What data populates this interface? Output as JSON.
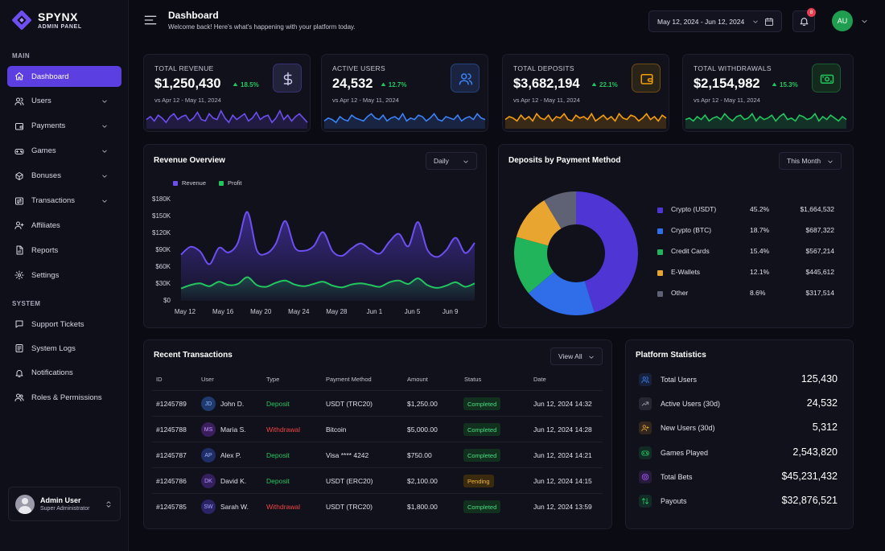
{
  "brand": {
    "name": "SPYNX",
    "sub": "ADMIN PANEL"
  },
  "sidebar": {
    "main_label": "MAIN",
    "system_label": "SYSTEM",
    "main_items": [
      {
        "label": "Dashboard",
        "icon": "home-icon",
        "active": true,
        "chevron": false
      },
      {
        "label": "Users",
        "icon": "users-icon",
        "chevron": true
      },
      {
        "label": "Payments",
        "icon": "wallet-icon",
        "chevron": true
      },
      {
        "label": "Games",
        "icon": "gamepad-icon",
        "chevron": true
      },
      {
        "label": "Bonuses",
        "icon": "gift-icon",
        "chevron": true
      },
      {
        "label": "Transactions",
        "icon": "exchange-icon",
        "chevron": true
      },
      {
        "label": "Affiliates",
        "icon": "user-plus-icon",
        "chevron": false
      },
      {
        "label": "Reports",
        "icon": "file-chart-icon",
        "chevron": false
      },
      {
        "label": "Settings",
        "icon": "gear-icon",
        "chevron": false
      }
    ],
    "system_items": [
      {
        "label": "Support Tickets",
        "icon": "chat-icon"
      },
      {
        "label": "System Logs",
        "icon": "log-icon"
      },
      {
        "label": "Notifications",
        "icon": "bell-icon"
      },
      {
        "label": "Roles & Permissions",
        "icon": "shield-users-icon"
      }
    ],
    "user": {
      "name": "Admin User",
      "role": "Super Administrator"
    }
  },
  "header": {
    "title": "Dashboard",
    "subtitle": "Welcome back! Here's what's happening with your platform today.",
    "date_range": "May 12, 2024 - Jun 12, 2024",
    "notif_count": "8",
    "avatar_initials": "AU"
  },
  "kpis": [
    {
      "label": "TOTAL REVENUE",
      "value": "$1,250,430",
      "change": "18.5%",
      "period": "vs Apr 12 - May 11, 2024",
      "icon": "dollar-icon",
      "color": "#6d4ef0",
      "spark": [
        12,
        14,
        11,
        15,
        13,
        10,
        14,
        16,
        12,
        14,
        15,
        11,
        13,
        17,
        12,
        11,
        16,
        13,
        12,
        18,
        13,
        10,
        15,
        12,
        14,
        16,
        11,
        13,
        17,
        12,
        14,
        15,
        10,
        13,
        18,
        12,
        15,
        11,
        14,
        16,
        13,
        10
      ]
    },
    {
      "label": "ACTIVE USERS",
      "value": "24,532",
      "change": "12.7%",
      "period": "vs Apr 12 - May 11, 2024",
      "icon": "users-icon",
      "color": "#3b82f6",
      "spark": [
        11,
        13,
        12,
        10,
        14,
        12,
        11,
        15,
        13,
        12,
        11,
        14,
        16,
        13,
        12,
        15,
        11,
        13,
        14,
        12,
        16,
        11,
        13,
        12,
        15,
        14,
        11,
        13,
        16,
        12,
        11,
        14,
        13,
        12,
        15,
        11,
        13,
        14,
        12,
        16,
        13,
        12
      ]
    },
    {
      "label": "TOTAL DEPOSITS",
      "value": "$3,682,194",
      "change": "22.1%",
      "period": "vs Apr 12 - May 11, 2024",
      "icon": "wallet-icon",
      "color": "#f59e0b",
      "spark": [
        12,
        14,
        13,
        11,
        15,
        12,
        14,
        11,
        16,
        13,
        12,
        15,
        11,
        14,
        13,
        16,
        12,
        11,
        15,
        13,
        14,
        12,
        16,
        11,
        13,
        15,
        12,
        14,
        11,
        16,
        13,
        12,
        15,
        14,
        11,
        13,
        16,
        12,
        14,
        11,
        15,
        13
      ]
    },
    {
      "label": "TOTAL WITHDRAWALS",
      "value": "$2,154,982",
      "change": "15.3%",
      "period": "vs Apr 12 - May 11, 2024",
      "icon": "cash-icon",
      "color": "#22c55e",
      "spark": [
        12,
        13,
        11,
        14,
        12,
        15,
        11,
        13,
        14,
        12,
        16,
        13,
        11,
        14,
        15,
        12,
        13,
        16,
        11,
        14,
        12,
        13,
        15,
        11,
        14,
        16,
        12,
        13,
        11,
        15,
        14,
        12,
        13,
        16,
        11,
        14,
        12,
        15,
        13,
        11,
        14,
        12
      ]
    }
  ],
  "revenue": {
    "title": "Revenue Overview",
    "period": "Daily",
    "chart_data": {
      "type": "area",
      "x": [
        "May 12",
        "May 13",
        "May 14",
        "May 15",
        "May 16",
        "May 17",
        "May 18",
        "May 19",
        "May 20",
        "May 21",
        "May 22",
        "May 23",
        "May 24",
        "May 25",
        "May 26",
        "May 27",
        "May 28",
        "May 29",
        "May 30",
        "May 31",
        "Jun 1",
        "Jun 2",
        "Jun 3",
        "Jun 4",
        "Jun 5",
        "Jun 6",
        "Jun 7",
        "Jun 8",
        "Jun 9",
        "Jun 10",
        "Jun 11",
        "Jun 12"
      ],
      "x_ticks": [
        "May 12",
        "May 16",
        "May 20",
        "May 24",
        "May 28",
        "Jun 1",
        "Jun 5",
        "Jun 9"
      ],
      "series": [
        {
          "name": "Revenue",
          "color": "#6d4ef0",
          "values": [
            82,
            96,
            88,
            65,
            94,
            86,
            103,
            158,
            90,
            84,
            101,
            142,
            95,
            89,
            97,
            122,
            88,
            80,
            93,
            102,
            91,
            84,
            105,
            119,
            97,
            140,
            91,
            78,
            90,
            112,
            85,
            103
          ]
        },
        {
          "name": "Profit",
          "color": "#22c55e",
          "values": [
            22,
            28,
            31,
            26,
            34,
            28,
            30,
            42,
            28,
            25,
            32,
            36,
            29,
            26,
            30,
            34,
            27,
            24,
            29,
            31,
            28,
            25,
            33,
            36,
            30,
            40,
            28,
            23,
            27,
            33,
            25,
            31
          ]
        }
      ],
      "ylim": [
        0,
        180
      ],
      "yticks": [
        "$0",
        "$30K",
        "$60K",
        "$90K",
        "$120K",
        "$150K",
        "$180K"
      ]
    }
  },
  "deposits": {
    "title": "Deposits by Payment Method",
    "period": "This Month",
    "chart_data": {
      "type": "pie",
      "labels": [
        "Crypto (USDT)",
        "Crypto (BTC)",
        "Credit Cards",
        "E-Wallets",
        "Other"
      ],
      "percents": [
        "45.2%",
        "18.7%",
        "15.4%",
        "12.1%",
        "8.6%"
      ],
      "values_label": [
        "$1,664,532",
        "$687,322",
        "$567,214",
        "$445,612",
        "$317,514"
      ],
      "values": [
        45.2,
        18.7,
        15.4,
        12.1,
        8.6
      ],
      "colors": [
        "#4f35d4",
        "#2f6ee8",
        "#22b45a",
        "#e8a630",
        "#5f6275"
      ]
    }
  },
  "transactions": {
    "title": "Recent Transactions",
    "view_all": "View All",
    "columns": [
      "ID",
      "User",
      "Type",
      "Payment Method",
      "Amount",
      "Status",
      "Date"
    ],
    "rows": [
      {
        "id": "#1245789",
        "initials": "JD",
        "user": "John D.",
        "type": "Deposit",
        "method": "USDT (TRC20)",
        "amount": "$1,250.00",
        "status": "Completed",
        "date": "Jun 12, 2024 14:32"
      },
      {
        "id": "#1245788",
        "initials": "MS",
        "user": "Maria S.",
        "type": "Withdrawal",
        "method": "Bitcoin",
        "amount": "$5,000.00",
        "status": "Completed",
        "date": "Jun 12, 2024 14:28"
      },
      {
        "id": "#1245787",
        "initials": "AP",
        "user": "Alex P.",
        "type": "Deposit",
        "method": "Visa **** 4242",
        "amount": "$750.00",
        "status": "Completed",
        "date": "Jun 12, 2024 14:21"
      },
      {
        "id": "#1245786",
        "initials": "DK",
        "user": "David K.",
        "type": "Deposit",
        "method": "USDT (ERC20)",
        "amount": "$2,100.00",
        "status": "Pending",
        "date": "Jun 12, 2024 14:15"
      },
      {
        "id": "#1245785",
        "initials": "SW",
        "user": "Sarah W.",
        "type": "Withdrawal",
        "method": "USDT (TRC20)",
        "amount": "$1,800.00",
        "status": "Completed",
        "date": "Jun 12, 2024 13:59"
      }
    ]
  },
  "stats": {
    "title": "Platform Statistics",
    "items": [
      {
        "label": "Total Users",
        "value": "125,430",
        "icon": "users-icon",
        "color": "#3b82f6"
      },
      {
        "label": "Active Users (30d)",
        "value": "24,532",
        "icon": "trend-up-icon",
        "color": "#a0a0b4"
      },
      {
        "label": "New Users (30d)",
        "value": "5,312",
        "icon": "user-plus-icon",
        "color": "#e8a630"
      },
      {
        "label": "Games Played",
        "value": "2,543,820",
        "icon": "gamepad-icon",
        "color": "#22c55e"
      },
      {
        "label": "Total Bets",
        "value": "$45,231,432",
        "icon": "target-icon",
        "color": "#a855f7"
      },
      {
        "label": "Payouts",
        "value": "$32,876,521",
        "icon": "swap-icon",
        "color": "#22c55e"
      }
    ]
  }
}
